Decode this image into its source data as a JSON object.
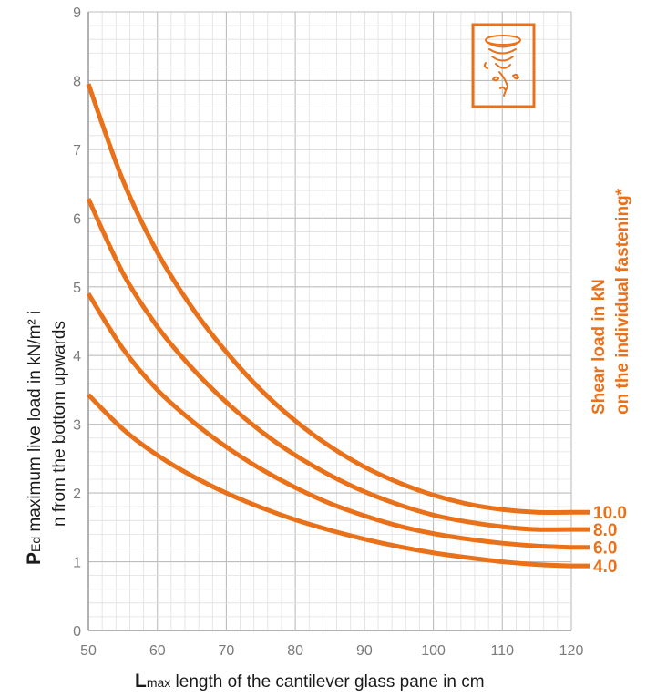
{
  "chart_data": {
    "type": "line",
    "xlabel": {
      "bold": "L",
      "sub": "max",
      "rest": " length of the cantilever glass pane in cm"
    },
    "ylabel": {
      "bold": "P",
      "sub": "Ed",
      "line1_rest": " maximum live load in kN/m² i",
      "line2": "n from the bottom upwards"
    },
    "xlim": [
      50,
      120
    ],
    "ylim": [
      0,
      9
    ],
    "x_ticks": [
      "50",
      "60",
      "70",
      "80",
      "90",
      "100",
      "110",
      "120"
    ],
    "y_ticks": [
      "0",
      "1",
      "2",
      "3",
      "4",
      "5",
      "6",
      "7",
      "8",
      "9"
    ],
    "grid": true,
    "legend_title": [
      "Shear load in kN",
      "on the individual fastening*"
    ],
    "colors": {
      "series": "#e8711a",
      "grid": "#cfcfcf",
      "axis": "#9a9a9a",
      "icon": "#e8711a"
    },
    "icon": "tornado-icon",
    "series": [
      {
        "name": "10.0",
        "x": [
          50,
          55,
          60,
          65,
          70,
          75,
          80,
          85,
          90,
          95,
          100,
          105,
          110,
          115,
          120
        ],
        "y": [
          7.95,
          6.55,
          5.5,
          4.7,
          4.05,
          3.5,
          3.05,
          2.68,
          2.38,
          2.15,
          1.97,
          1.84,
          1.76,
          1.72,
          1.72
        ]
      },
      {
        "name": "8.0",
        "x": [
          50,
          55,
          60,
          65,
          70,
          75,
          80,
          85,
          90,
          95,
          100,
          105,
          110,
          115,
          120
        ],
        "y": [
          6.28,
          5.2,
          4.42,
          3.82,
          3.32,
          2.9,
          2.55,
          2.26,
          2.02,
          1.83,
          1.68,
          1.58,
          1.51,
          1.47,
          1.47
        ]
      },
      {
        "name": "6.0",
        "x": [
          50,
          55,
          60,
          65,
          70,
          75,
          80,
          85,
          90,
          95,
          100,
          105,
          110,
          115,
          120
        ],
        "y": [
          4.9,
          4.1,
          3.5,
          3.05,
          2.67,
          2.35,
          2.08,
          1.85,
          1.67,
          1.52,
          1.41,
          1.33,
          1.27,
          1.23,
          1.21
        ]
      },
      {
        "name": "4.0",
        "x": [
          50,
          55,
          60,
          65,
          70,
          75,
          80,
          85,
          90,
          95,
          100,
          105,
          110,
          115,
          120
        ],
        "y": [
          3.43,
          2.93,
          2.55,
          2.25,
          2.0,
          1.79,
          1.61,
          1.46,
          1.33,
          1.22,
          1.13,
          1.06,
          1.0,
          0.96,
          0.94
        ]
      }
    ]
  }
}
